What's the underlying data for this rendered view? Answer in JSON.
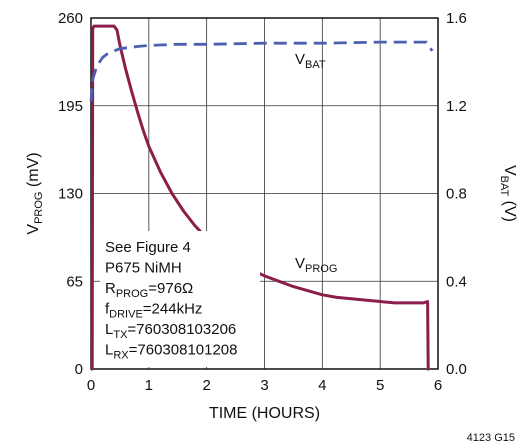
{
  "chart_data": {
    "type": "line",
    "xlabel": "TIME (HOURS)",
    "x_ticks": [
      "0",
      "1",
      "2",
      "3",
      "4",
      "5",
      "6"
    ],
    "xlim": [
      0,
      6
    ],
    "ylabel_left": {
      "main": "V",
      "sub": "PROG",
      "unit": " (mV)"
    },
    "ylabel_right": {
      "main": "V",
      "sub": "BAT",
      "unit": " (V)"
    },
    "y_left_ticks": [
      "0",
      "65",
      "130",
      "195",
      "260"
    ],
    "ylim_left": [
      0,
      260
    ],
    "y_right_ticks": [
      "0.0",
      "0.4",
      "0.8",
      "1.2",
      "1.6"
    ],
    "ylim_right": [
      0,
      1.6
    ],
    "grid": true,
    "series": [
      {
        "name": "V_PROG",
        "axis": "left",
        "color": "#8b1e4a",
        "style": "solid",
        "label": {
          "main": "V",
          "sub": "PROG"
        },
        "x": [
          0,
          0.02,
          0.03,
          0.05,
          0.1,
          0.2,
          0.3,
          0.4,
          0.45,
          0.5,
          0.6,
          0.7,
          0.8,
          0.9,
          1.0,
          1.2,
          1.4,
          1.6,
          1.8,
          2.0,
          2.25,
          2.5,
          2.75,
          3.0,
          3.25,
          3.5,
          3.75,
          4.0,
          4.25,
          4.5,
          4.75,
          5.0,
          5.25,
          5.5,
          5.75,
          5.82,
          5.83,
          5.85
        ],
        "y": [
          0,
          0,
          252,
          254,
          254,
          254,
          254,
          254,
          251,
          240,
          222,
          206,
          191,
          177,
          165,
          146,
          130,
          117,
          106,
          97,
          88,
          80,
          74,
          69,
          65,
          61,
          58,
          55,
          53,
          52,
          51,
          50,
          49,
          49,
          49,
          50,
          0,
          0
        ]
      },
      {
        "name": "V_BAT",
        "axis": "right",
        "color": "#4d5fb0",
        "style": "dashed",
        "label": {
          "main": "V",
          "sub": "BAT"
        },
        "x": [
          0,
          0.03,
          0.1,
          0.2,
          0.3,
          0.5,
          0.8,
          1.0,
          1.5,
          2.0,
          3.0,
          4.0,
          5.0,
          5.5,
          5.8,
          5.85,
          5.9
        ],
        "y": [
          1.22,
          1.32,
          1.38,
          1.42,
          1.44,
          1.46,
          1.47,
          1.475,
          1.48,
          1.48,
          1.485,
          1.485,
          1.49,
          1.49,
          1.49,
          1.47,
          1.45
        ]
      }
    ],
    "annotation_lines": [
      {
        "text": "See Figure 4"
      },
      {
        "text": "P675 NiMH"
      },
      {
        "main": "R",
        "sub": "PROG",
        "rest": "=976Ω"
      },
      {
        "main": "f",
        "sub": "DRIVE",
        "rest": "=244kHz"
      },
      {
        "main": "L",
        "sub": "TX",
        "rest": "=760308103206"
      },
      {
        "main": "L",
        "sub": "RX",
        "rest": "=760308101208"
      }
    ],
    "figure_code": "4123 G15"
  }
}
